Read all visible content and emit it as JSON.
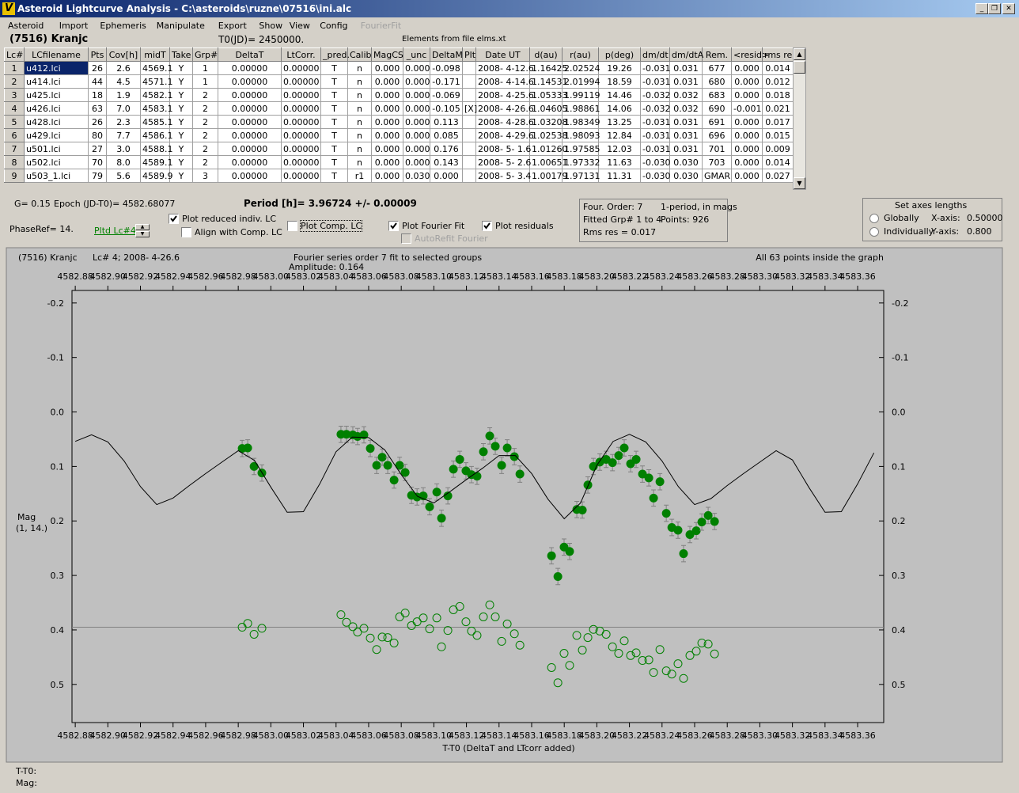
{
  "window": {
    "title": "Asteroid Lightcurve Analysis - C:\\asteroids\\ruzne\\07516\\ini.alc",
    "menu": [
      "Asteroid",
      "Import",
      "Ephemeris",
      "Manipulate",
      "Export",
      "Show",
      "View",
      "Config",
      "FourierFit"
    ],
    "menu_enabled": [
      true,
      true,
      true,
      true,
      true,
      true,
      true,
      true,
      false
    ]
  },
  "header": {
    "asteroid": "(7516) Kranjc",
    "t0": "T0(JD)= 2450000.",
    "elements": "Elements from file elms.xt"
  },
  "table": {
    "columns": [
      "Lc#",
      "LCfilename",
      "Pts",
      "Cov[h]",
      "midT",
      "Take",
      "Grp#",
      "DeltaT",
      "LtCorr.",
      "_pred.",
      "Calib",
      "MagCS",
      "_unc",
      "DeltaM",
      "Plt",
      "Date UT",
      "d(au)",
      "r(au)",
      "p(deg)",
      "dm/dt",
      "dm/dtA",
      "Rem.",
      "<resid>",
      "rms res"
    ],
    "selected_row": 0,
    "rows": [
      [
        "1",
        "u412.lci",
        "26",
        "2.6",
        "4569.1",
        "Y",
        "1",
        "0.00000",
        "0.00000",
        "T",
        "n",
        "0.000",
        "0.000",
        "-0.098",
        null,
        "2008- 4-12.6",
        "1.16425",
        "2.02524",
        "19.26",
        "-0.031",
        "0.031",
        "677",
        "0.000",
        "0.014"
      ],
      [
        "2",
        "u414.lci",
        "44",
        "4.5",
        "4571.1",
        "Y",
        "1",
        "0.00000",
        "0.00000",
        "T",
        "n",
        "0.000",
        "0.000",
        "-0.171",
        null,
        "2008- 4-14.6",
        "1.14531",
        "2.01994",
        "18.59",
        "-0.031",
        "0.031",
        "680",
        "0.000",
        "0.012"
      ],
      [
        "3",
        "u425.lci",
        "18",
        "1.9",
        "4582.1",
        "Y",
        "2",
        "0.00000",
        "0.00000",
        "T",
        "n",
        "0.000",
        "0.000",
        "-0.069",
        null,
        "2008- 4-25.6",
        "1.05333",
        "1.99119",
        "14.46",
        "-0.032",
        "0.032",
        "683",
        "0.000",
        "0.018"
      ],
      [
        "4",
        "u426.lci",
        "63",
        "7.0",
        "4583.1",
        "Y",
        "2",
        "0.00000",
        "0.00000",
        "T",
        "n",
        "0.000",
        "0.000",
        "-0.105",
        "[X]",
        "2008- 4-26.6",
        "1.04605",
        "1.98861",
        "14.06",
        "-0.032",
        "0.032",
        "690",
        "-0.001",
        "0.021"
      ],
      [
        "5",
        "u428.lci",
        "26",
        "2.3",
        "4585.1",
        "Y",
        "2",
        "0.00000",
        "0.00000",
        "T",
        "n",
        "0.000",
        "0.000",
        "0.113",
        null,
        "2008- 4-28.6",
        "1.03208",
        "1.98349",
        "13.25",
        "-0.031",
        "0.031",
        "691",
        "0.000",
        "0.017"
      ],
      [
        "6",
        "u429.lci",
        "80",
        "7.7",
        "4586.1",
        "Y",
        "2",
        "0.00000",
        "0.00000",
        "T",
        "n",
        "0.000",
        "0.000",
        "0.085",
        null,
        "2008- 4-29.6",
        "1.02538",
        "1.98093",
        "12.84",
        "-0.031",
        "0.031",
        "696",
        "0.000",
        "0.015"
      ],
      [
        "7",
        "u501.lci",
        "27",
        "3.0",
        "4588.1",
        "Y",
        "2",
        "0.00000",
        "0.00000",
        "T",
        "n",
        "0.000",
        "0.000",
        "0.176",
        null,
        "2008- 5- 1.6",
        "1.01260",
        "1.97585",
        "12.03",
        "-0.031",
        "0.031",
        "701",
        "0.000",
        "0.009"
      ],
      [
        "8",
        "u502.lci",
        "70",
        "8.0",
        "4589.1",
        "Y",
        "2",
        "0.00000",
        "0.00000",
        "T",
        "n",
        "0.000",
        "0.000",
        "0.143",
        null,
        "2008- 5- 2.6",
        "1.00651",
        "1.97332",
        "11.63",
        "-0.030",
        "0.030",
        "703",
        "0.000",
        "0.014"
      ],
      [
        "9",
        "u503_1.lci",
        "79",
        "5.6",
        "4589.9",
        "Y",
        "3",
        "0.00000",
        "0.00000",
        "T",
        "r1",
        "0.000",
        "0.030",
        "0.000",
        null,
        "2008- 5- 3.4",
        "1.00179",
        "1.97131",
        "11.31",
        "-0.030",
        "0.030",
        "GMAR",
        "0.000",
        "0.027"
      ]
    ]
  },
  "controls": {
    "g": "G= 0.15",
    "epoch": "Epoch (JD-T0)= 4582.68077",
    "period": "Period [h]= 3.96724 +/- 0.00009",
    "phase_ref": "PhaseRef= 14.",
    "pltd_lc": "Pltd Lc#4:",
    "checkboxes": [
      {
        "label": "Plot reduced indiv. LC",
        "checked": true,
        "enabled": true
      },
      {
        "label": "Align with Comp. LC",
        "checked": false,
        "enabled": true
      },
      {
        "label": "Plot Comp. LC",
        "checked": false,
        "enabled": true
      },
      {
        "label": "Plot Fourier Fit",
        "checked": true,
        "enabled": true
      },
      {
        "label": "AutoRefit Fourier",
        "checked": false,
        "enabled": false
      },
      {
        "label": "Plot residuals",
        "checked": true,
        "enabled": true
      }
    ],
    "info": {
      "order": "Four. Order:  7",
      "mode": "1-period, in mags",
      "fitted": "Fitted Grp# 1 to 4",
      "points": "Points: 926",
      "rms": "Rms res     = 0.017"
    },
    "axes": {
      "title": "Set axes lengths",
      "options": [
        {
          "label": "Globally",
          "selected": false
        },
        {
          "label": "Individually",
          "selected": false
        }
      ],
      "x_label": "X-axis:",
      "x_value": "0.50000",
      "y_label": "Y-axis:",
      "y_value": "0.800"
    }
  },
  "chart_data": {
    "type": "scatter",
    "object": "(7516) Kranjc",
    "lc_label": "Lc# 4; 2008- 4-26.6",
    "title": "Fourier series order 7 fit to selected groups",
    "subtitle": "Amplitude: 0.164",
    "annotation": "All 63 points inside the graph",
    "x_label": "T-T0 (DeltaT and LTcorr added)",
    "y_label": "Mag",
    "y_label_2": "(1, 14.)",
    "xlim": [
      4582.878,
      4583.376
    ],
    "ylim": [
      -0.223,
      0.57
    ],
    "y_inverted": true,
    "xticks": [
      4582.88,
      {
        "value": 4582.9,
        "label": "4582.90"
      },
      4582.92,
      4582.94,
      4582.96,
      4582.98,
      {
        "value": 4583,
        "label": "4583.00"
      },
      4583.02,
      4583.04,
      4583.06,
      4583.08,
      {
        "value": 4583.1,
        "label": "4583.10"
      },
      4583.12,
      4583.14,
      4583.16,
      4583.18,
      {
        "value": 4583.2,
        "label": "4583.20"
      },
      4583.22,
      4583.24,
      4583.26,
      4583.28,
      {
        "value": 4583.3,
        "label": "4583.30"
      },
      4583.32,
      4583.34,
      4583.36
    ],
    "yticks": [
      -0.2,
      -0.1,
      {
        "value": 0,
        "label": "0.0"
      },
      0.1,
      0.2,
      0.3,
      0.4,
      0.5
    ],
    "reference_line": {
      "value": 0.395,
      "color": "#808080"
    },
    "series": [
      {
        "style": "filled",
        "color": "#008000",
        "error": 0.015,
        "x": [
          4582.9824,
          4582.9858,
          4582.9897,
          4582.9945,
          4583.043,
          4583.0464,
          4583.0503,
          4583.0532,
          4583.0571,
          4583.061,
          4583.0649,
          4583.0683,
          4583.0717,
          4583.0756,
          4583.079,
          4583.0824,
          4583.0863,
          4583.0897,
          4583.0935,
          4583.0974,
          4583.1018,
          4583.1047,
          4583.1086,
          4583.112,
          4583.1159,
          4583.1197,
          4583.1231,
          4583.1265,
          4583.1304,
          4583.1343,
          4583.1377,
          4583.1416,
          4583.145,
          4583.1494,
          4583.1528,
          4583.1722,
          4583.1761,
          4583.1799,
          4583.1833,
          4583.1877,
          4583.1911,
          4583.1945,
          4583.1979,
          4583.2018,
          4583.2057,
          4583.2096,
          4583.2134,
          4583.2168,
          4583.2207,
          4583.2241,
          4583.228,
          4583.2319,
          4583.2348,
          4583.2387,
          4583.2426,
          4583.246,
          4583.2498,
          4583.2532,
          4583.2571,
          4583.261,
          4583.2644,
          4583.2683,
          4583.2722
        ],
        "values": [
          0.067,
          0.066,
          0.1,
          0.112,
          0.041,
          0.041,
          0.042,
          0.045,
          0.042,
          0.067,
          0.098,
          0.083,
          0.098,
          0.125,
          0.098,
          0.111,
          0.153,
          0.156,
          0.154,
          0.174,
          0.147,
          0.195,
          0.154,
          0.105,
          0.087,
          0.108,
          0.115,
          0.118,
          0.073,
          0.044,
          0.063,
          0.098,
          0.066,
          0.082,
          0.114,
          0.264,
          0.302,
          0.248,
          0.256,
          0.179,
          0.18,
          0.134,
          0.1,
          0.092,
          0.087,
          0.093,
          0.08,
          0.066,
          0.095,
          0.087,
          0.114,
          0.121,
          0.158,
          0.128,
          0.186,
          0.212,
          0.217,
          0.26,
          0.225,
          0.218,
          0.202,
          0.19,
          0.201
        ]
      },
      {
        "style": "open",
        "color": "#008000",
        "x": [
          4582.9824,
          4582.9858,
          4582.9897,
          4582.9945,
          4583.043,
          4583.0464,
          4583.0503,
          4583.0532,
          4583.0571,
          4583.061,
          4583.0649,
          4583.0683,
          4583.0717,
          4583.0756,
          4583.079,
          4583.0824,
          4583.0863,
          4583.0897,
          4583.0935,
          4583.0974,
          4583.1018,
          4583.1047,
          4583.1086,
          4583.112,
          4583.1159,
          4583.1197,
          4583.1231,
          4583.1265,
          4583.1304,
          4583.1343,
          4583.1377,
          4583.1416,
          4583.145,
          4583.1494,
          4583.1528,
          4583.1722,
          4583.1761,
          4583.1799,
          4583.1833,
          4583.1877,
          4583.1911,
          4583.1945,
          4583.1979,
          4583.2018,
          4583.2057,
          4583.2096,
          4583.2134,
          4583.2168,
          4583.2207,
          4583.2241,
          4583.228,
          4583.2319,
          4583.2348,
          4583.2387,
          4583.2426,
          4583.246,
          4583.2498,
          4583.2532,
          4583.2571,
          4583.261,
          4583.2644,
          4583.2683,
          4583.2722
        ],
        "values": [
          0.395,
          0.388,
          0.408,
          0.397,
          0.372,
          0.386,
          0.394,
          0.404,
          0.397,
          0.415,
          0.436,
          0.413,
          0.414,
          0.424,
          0.376,
          0.369,
          0.392,
          0.385,
          0.378,
          0.398,
          0.378,
          0.431,
          0.401,
          0.363,
          0.357,
          0.385,
          0.402,
          0.41,
          0.376,
          0.354,
          0.376,
          0.421,
          0.389,
          0.407,
          0.428,
          0.469,
          0.497,
          0.443,
          0.465,
          0.41,
          0.437,
          0.414,
          0.399,
          0.402,
          0.408,
          0.431,
          0.443,
          0.42,
          0.447,
          0.442,
          0.456,
          0.455,
          0.478,
          0.436,
          0.475,
          0.481,
          0.462,
          0.489,
          0.447,
          0.439,
          0.424,
          0.426,
          0.444
        ]
      },
      {
        "style": "line",
        "color": "#000000",
        "x": [
          4582.88,
          4582.89,
          4582.9,
          4582.91,
          4582.92,
          4582.93,
          4582.94,
          4582.95,
          4582.96,
          4582.97,
          4582.98,
          4582.99,
          4583.0,
          4583.01,
          4583.02,
          4583.03,
          4583.04,
          4583.05,
          4583.06,
          4583.07,
          4583.08,
          4583.09,
          4583.1,
          4583.11,
          4583.12,
          4583.13,
          4583.14,
          4583.15,
          4583.16,
          4583.17,
          4583.18,
          4583.19,
          4583.2,
          4583.21,
          4583.22,
          4583.23,
          4583.24,
          4583.25,
          4583.26,
          4583.27,
          4583.28,
          4583.29,
          4583.3,
          4583.31,
          4583.32,
          4583.33,
          4583.34,
          4583.35,
          4583.36,
          4583.37
        ],
        "values": [
          0.054,
          0.042,
          0.055,
          0.09,
          0.137,
          0.17,
          0.158,
          0.135,
          0.113,
          0.092,
          0.071,
          0.089,
          0.138,
          0.184,
          0.183,
          0.132,
          0.073,
          0.046,
          0.047,
          0.07,
          0.115,
          0.155,
          0.167,
          0.146,
          0.124,
          0.103,
          0.08,
          0.08,
          0.113,
          0.16,
          0.196,
          0.167,
          0.098,
          0.054,
          0.041,
          0.055,
          0.09,
          0.137,
          0.17,
          0.159,
          0.135,
          0.113,
          0.092,
          0.071,
          0.088,
          0.138,
          0.184,
          0.183,
          0.132,
          0.075
        ]
      }
    ]
  },
  "status": {
    "t_t0": "T-T0:",
    "mag": "Mag:"
  }
}
